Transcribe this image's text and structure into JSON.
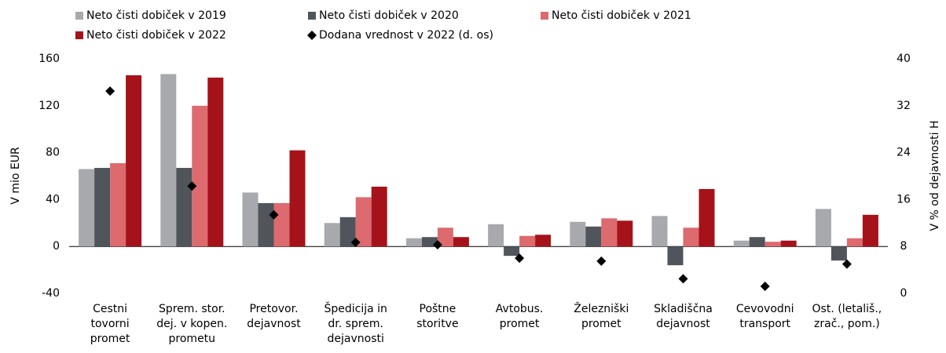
{
  "chart_data": {
    "type": "bar",
    "categories": [
      [
        "Cestni",
        "tovorni",
        "promet"
      ],
      [
        "Sprem. stor.",
        "dej. v kopen.",
        "prometu"
      ],
      [
        "Pretovor.",
        "dejavnost"
      ],
      [
        "Špedicija in",
        "dr. sprem.",
        "dejavnosti"
      ],
      [
        "Poštne",
        "storitve"
      ],
      [
        "Avtobus.",
        "promet"
      ],
      [
        "Železniški",
        "promet"
      ],
      [
        "Skladiščna",
        "dejavnost"
      ],
      [
        "Cevovodni",
        "transport"
      ],
      [
        "Ost. (letališ.,",
        "zrač., pom.)"
      ]
    ],
    "series": [
      {
        "name": "Neto čisti dobiček v 2019",
        "color": "#a7a9ac",
        "values": [
          66,
          147,
          46,
          20,
          7,
          19,
          21,
          26,
          5,
          32
        ]
      },
      {
        "name": "Neto čisti dobiček v 2020",
        "color": "#50555b",
        "values": [
          67,
          67,
          37,
          25,
          8,
          -8,
          17,
          -16,
          8,
          -12
        ]
      },
      {
        "name": "Neto čisti dobiček v 2021",
        "color": "#dc6a6e",
        "values": [
          71,
          120,
          37,
          42,
          16,
          9,
          24,
          16,
          4,
          7
        ]
      },
      {
        "name": "Neto čisti dobiček v 2022",
        "color": "#a6121a",
        "values": [
          146,
          144,
          82,
          51,
          8,
          10,
          22,
          49,
          5,
          27
        ]
      },
      {
        "name": "Dodana vrednost v 2022 (d. os)",
        "type": "scatter",
        "axis": "y2",
        "color": "#000000",
        "values": [
          34.5,
          18.3,
          13.4,
          8.7,
          8.3,
          6.0,
          5.5,
          2.5,
          1.2,
          5.0
        ]
      }
    ],
    "ylabel": "V mio EUR",
    "y2label": "V % od dejavnosti H",
    "ylim": [
      -40,
      160
    ],
    "yticks": [
      -40,
      0,
      40,
      80,
      120,
      160
    ],
    "y2lim": [
      0,
      40
    ],
    "y2ticks": [
      0,
      8,
      16,
      24,
      32,
      40
    ]
  }
}
